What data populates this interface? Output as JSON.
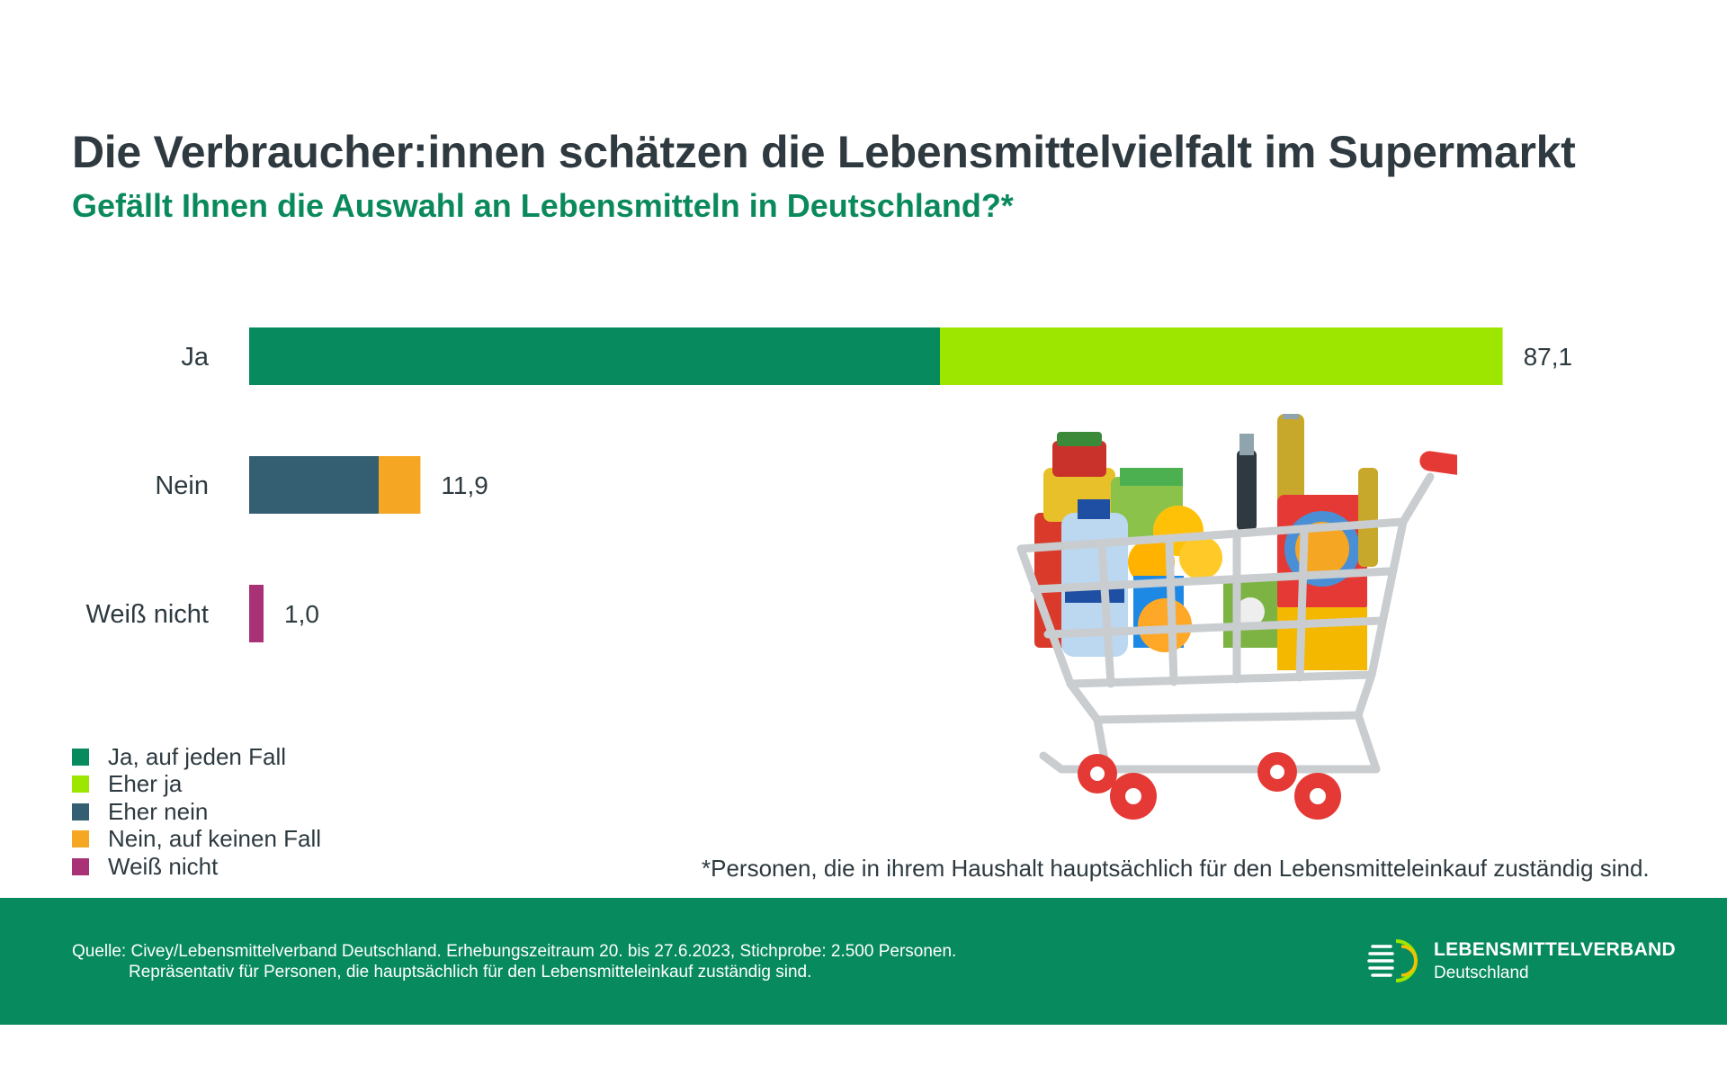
{
  "title": "Die Verbraucher:innen schätzen die Lebensmittelvielfalt im Supermarkt",
  "subtitle": "Gefällt Ihnen die Auswahl an Lebensmitteln in Deutschland?*",
  "chart_data": {
    "type": "bar",
    "orientation": "horizontal",
    "stacked": true,
    "categories": [
      "Ja",
      "Nein",
      "Weiß nicht"
    ],
    "totals": [
      "87,1",
      "11,9",
      "1,0"
    ],
    "series": [
      {
        "name": "Ja, auf jeden Fall",
        "color": "#078a5d",
        "values": [
          48.0,
          0,
          0
        ]
      },
      {
        "name": "Eher ja",
        "color": "#9de600",
        "values": [
          39.1,
          0,
          0
        ]
      },
      {
        "name": "Eher nein",
        "color": "#345f72",
        "values": [
          0,
          9.0,
          0
        ]
      },
      {
        "name": "Nein, auf keinen Fall",
        "color": "#f5a623",
        "values": [
          0,
          2.9,
          0
        ]
      },
      {
        "name": "Weiß nicht",
        "color": "#a93277",
        "values": [
          0,
          0,
          1.0
        ]
      }
    ],
    "legend_position": "bottom-left",
    "grid": false,
    "axis_visible": false
  },
  "footnote": "*Personen, die in ihrem Haushalt hauptsächlich für den Lebensmitteleinkauf zuständig sind.",
  "source": {
    "line1": "Quelle: Civey/Lebensmittelverband Deutschland. Erhebungszeitraum 20. bis 27.6.2023, Stichprobe: 2.500 Personen.",
    "line2": "Repräsentativ für Personen, die hauptsächlich für den Lebensmitteleinkauf zuständig sind."
  },
  "brand": {
    "name": "LEBENSMITTELVERBAND",
    "sub": "Deutschland"
  },
  "colors": {
    "footer": "#078a5d",
    "title": "#2f3a40",
    "subtitle": "#0a8a5c"
  },
  "illustration": "shopping-cart-with-groceries"
}
